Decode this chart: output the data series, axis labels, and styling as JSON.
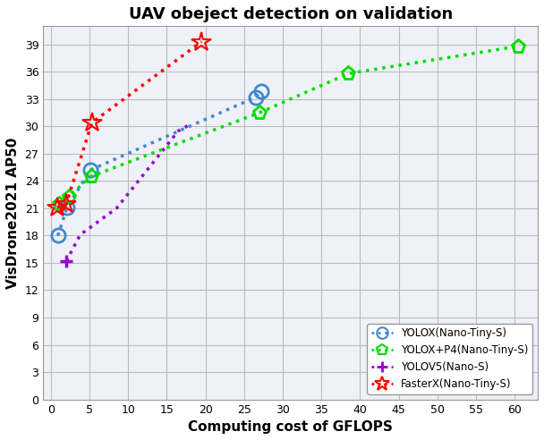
{
  "title": "UAV obeject detection on validation",
  "xlabel": "Computing cost of GFLOPS",
  "ylabel": "VisDrone2021 AP50",
  "xlim": [
    -1,
    63
  ],
  "ylim": [
    0,
    41
  ],
  "xticks": [
    0,
    5,
    10,
    15,
    20,
    25,
    30,
    35,
    40,
    45,
    50,
    55,
    60
  ],
  "yticks": [
    0,
    3,
    6,
    9,
    12,
    15,
    18,
    21,
    24,
    27,
    30,
    33,
    36,
    39
  ],
  "yolox": {
    "x": [
      0.9,
      2.1,
      5.1,
      26.5,
      27.2
    ],
    "y": [
      18.0,
      21.1,
      25.2,
      33.2,
      33.9
    ],
    "color": "#4488CC",
    "marker": "o",
    "markersize": 11,
    "linewidth": 2.5,
    "label": "YOLOX(Nano-Tiny-S)"
  },
  "yolox_p4": {
    "x": [
      1.0,
      2.3,
      5.2,
      27.0,
      38.5,
      60.5
    ],
    "y": [
      21.5,
      22.3,
      24.5,
      31.5,
      35.8,
      38.8
    ],
    "color": "#00DD00",
    "marker": "p",
    "markersize": 11,
    "linewidth": 2.5,
    "label": "YOLOX+P4(Nano-Tiny-S)"
  },
  "yolov5": {
    "x": [
      2.0,
      3.8,
      8.5,
      16.5,
      17.8
    ],
    "y": [
      15.2,
      18.1,
      21.0,
      29.5,
      30.1
    ],
    "color": "#9900CC",
    "marker": "P",
    "markersize": 10,
    "linewidth": 2.5,
    "label": "YOLOV5(Nano-S)"
  },
  "fasterx": {
    "x": [
      0.8,
      2.0,
      5.3,
      19.5
    ],
    "y": [
      21.1,
      21.5,
      30.4,
      39.3
    ],
    "color": "#FF0000",
    "marker": "*",
    "markersize": 16,
    "linewidth": 2.5,
    "label": "FasterX(Nano-Tiny-S)"
  },
  "background_color": "#ffffff",
  "grid_color": "#bbbbbb",
  "ax_bg_color": "#eef2f8"
}
